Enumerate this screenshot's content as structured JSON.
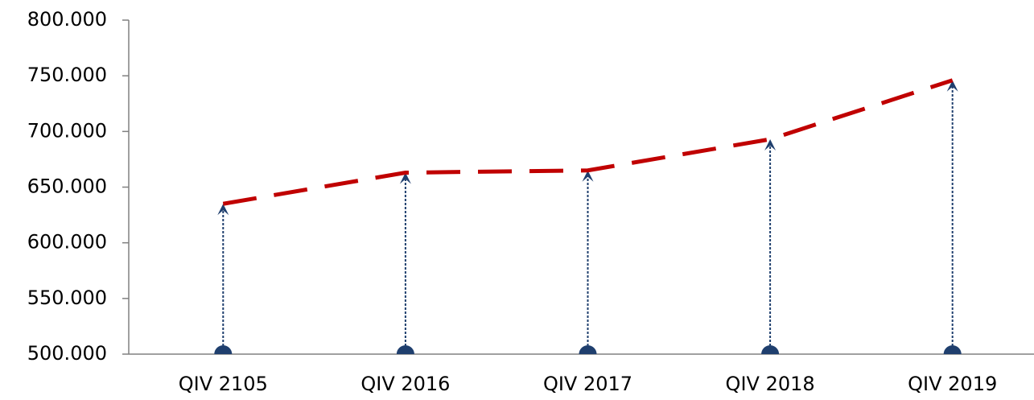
{
  "chart_data": {
    "type": "line",
    "categories": [
      "QIV 2105",
      "QIV 2016",
      "QIV 2017",
      "QIV 2018",
      "QIV 2019"
    ],
    "series": [
      {
        "color": "#c00000",
        "values": [
          635000,
          663000,
          665000,
          693000,
          746000
        ]
      }
    ],
    "arrow_color": "#1f3f6e",
    "ylim": [
      500000,
      800000
    ],
    "yticks": [
      {
        "value": 500000,
        "label": "500.000"
      },
      {
        "value": 550000,
        "label": "550.000"
      },
      {
        "value": 600000,
        "label": "600.000"
      },
      {
        "value": 650000,
        "label": "650.000"
      },
      {
        "value": 700000,
        "label": "700.000"
      },
      {
        "value": 750000,
        "label": "750.000"
      },
      {
        "value": 800000,
        "label": "800.000"
      }
    ]
  }
}
